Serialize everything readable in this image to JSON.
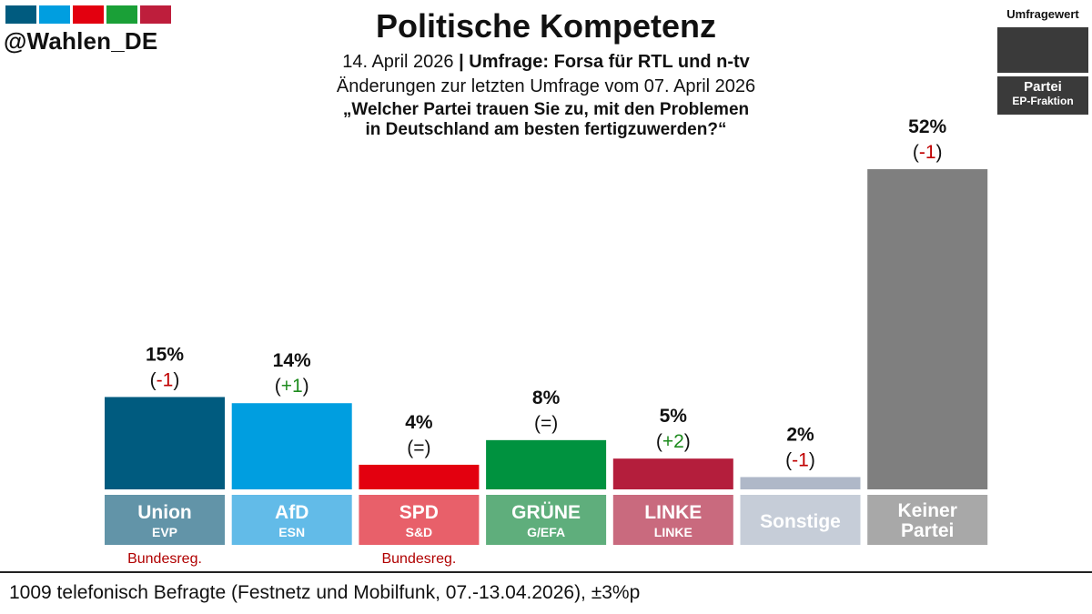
{
  "handle": "@Wahlen_DE",
  "logo_colors": [
    "#005B7F",
    "#009EE0",
    "#E3000F",
    "#1AA037",
    "#BE1E3C"
  ],
  "title": "Politische Kompetenz",
  "date": "14. April 2026",
  "separator": "|",
  "source": "Umfrage: Forsa für RTL und n-tv",
  "changes_note": "Änderungen zur letzten Umfrage vom 07. April 2026",
  "question_line1": "„Welcher Partei trauen Sie zu, mit den Problemen",
  "question_line2": "in Deutschland am besten fertigzuwerden?“",
  "legend": {
    "top": "Umfragewert",
    "party": "Partei",
    "faction": "EP-Fraktion"
  },
  "footer": "1009 telefonisch Befragte (Festnetz und Mobilfunk, 07.-13.04.2026), ±3%p",
  "chart_data": {
    "type": "bar",
    "categories": [
      "Union",
      "AfD",
      "SPD",
      "GRÜNE",
      "LINKE",
      "Sonstige",
      "Keiner Partei"
    ],
    "values": [
      15,
      14,
      4,
      8,
      5,
      2,
      52
    ],
    "value_labels": [
      "15%",
      "14%",
      "4%",
      "8%",
      "5%",
      "2%",
      "52%"
    ],
    "changes": [
      "(-1)",
      "(+1)",
      "(=)",
      "(=)",
      "(+2)",
      "(-1)",
      "(-1)"
    ],
    "change_direction": [
      "down",
      "up",
      "same",
      "same",
      "up",
      "down",
      "down"
    ],
    "party_names": [
      [
        "Union"
      ],
      [
        "AfD"
      ],
      [
        "SPD"
      ],
      [
        "GRÜNE"
      ],
      [
        "LINKE"
      ],
      [
        "Sonstige"
      ],
      [
        "Keiner",
        "Partei"
      ]
    ],
    "factions": [
      "EVP",
      "ESN",
      "S&D",
      "G/EFA",
      "LINKE",
      "",
      ""
    ],
    "government_note": [
      "Bundesreg.",
      "",
      "Bundesreg.",
      "",
      "",
      "",
      ""
    ],
    "bar_colors": [
      "#005B7F",
      "#009EE0",
      "#E3000F",
      "#00923F",
      "#B41E3C",
      "#AFB8C8",
      "#7F7F7F"
    ],
    "label_colors": [
      "#6294A8",
      "#62BBE8",
      "#E8606A",
      "#5FAE7C",
      "#C96A7E",
      "#C6CDD8",
      "#A8A8A8"
    ],
    "change_colors": {
      "down": "#C00000",
      "up": "#1E8B1E",
      "same": "#111111"
    },
    "ylim": [
      0,
      55
    ]
  }
}
